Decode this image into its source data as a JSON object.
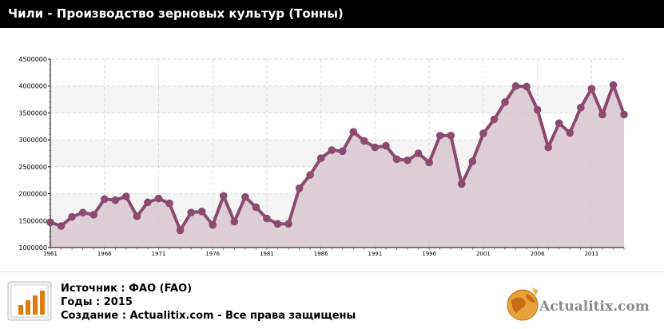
{
  "header": {
    "title": "Чили - Производство зерновых культур (Тонны)"
  },
  "chart_data": {
    "type": "area",
    "title": "Чили - Производство зерновых культур (Тонны)",
    "xlabel": "",
    "ylabel": "",
    "ylim": [
      1000000,
      4500000
    ],
    "yticks": [
      1000000,
      1500000,
      2000000,
      2500000,
      3000000,
      3500000,
      4000000,
      4500000
    ],
    "ytick_labels": [
      "1000000",
      "1500000",
      "2000000",
      "2500000",
      "3000000",
      "3500000",
      "4000000",
      "4500000"
    ],
    "xtick_labels": [
      "1961",
      "1966",
      "1971",
      "1976",
      "1981",
      "1986",
      "1991",
      "1996",
      "2001",
      "2006",
      "2011"
    ],
    "grid": true,
    "legend": "none",
    "series": [
      {
        "color": "#8b4a6e",
        "fill": "#d8c6cf",
        "x": [
          1961,
          1962,
          1963,
          1964,
          1965,
          1966,
          1967,
          1968,
          1969,
          1970,
          1971,
          1972,
          1973,
          1974,
          1975,
          1976,
          1977,
          1978,
          1979,
          1980,
          1981,
          1982,
          1983,
          1984,
          1985,
          1986,
          1987,
          1988,
          1989,
          1990,
          1991,
          1992,
          1993,
          1994,
          1995,
          1996,
          1997,
          1998,
          1999,
          2000,
          2001,
          2002,
          2003,
          2004,
          2005,
          2006,
          2007,
          2008,
          2009,
          2010,
          2011,
          2012,
          2013,
          2014
        ],
        "y": [
          1470000,
          1400000,
          1570000,
          1650000,
          1610000,
          1900000,
          1880000,
          1950000,
          1580000,
          1840000,
          1910000,
          1820000,
          1320000,
          1650000,
          1670000,
          1420000,
          1960000,
          1480000,
          1940000,
          1750000,
          1540000,
          1440000,
          1440000,
          2100000,
          2350000,
          2660000,
          2810000,
          2790000,
          3150000,
          2980000,
          2860000,
          2890000,
          2640000,
          2620000,
          2750000,
          2580000,
          3080000,
          3080000,
          2180000,
          2600000,
          3120000,
          3380000,
          3700000,
          4000000,
          3990000,
          3560000,
          2860000,
          3310000,
          3130000,
          3600000,
          3950000,
          3470000,
          4020000,
          3470000
        ]
      }
    ]
  },
  "footer": {
    "source": "Источник : ФАО (FAO)",
    "years": "Годы : 2015",
    "created": "Создание : Actualitix.com -  Все права защищены",
    "brand": "Actualitix.com"
  },
  "colors": {
    "header_bg": "#000000",
    "line": "#8b4a6e",
    "area": "#d8c6cf",
    "brand": "#8a8a8a"
  }
}
